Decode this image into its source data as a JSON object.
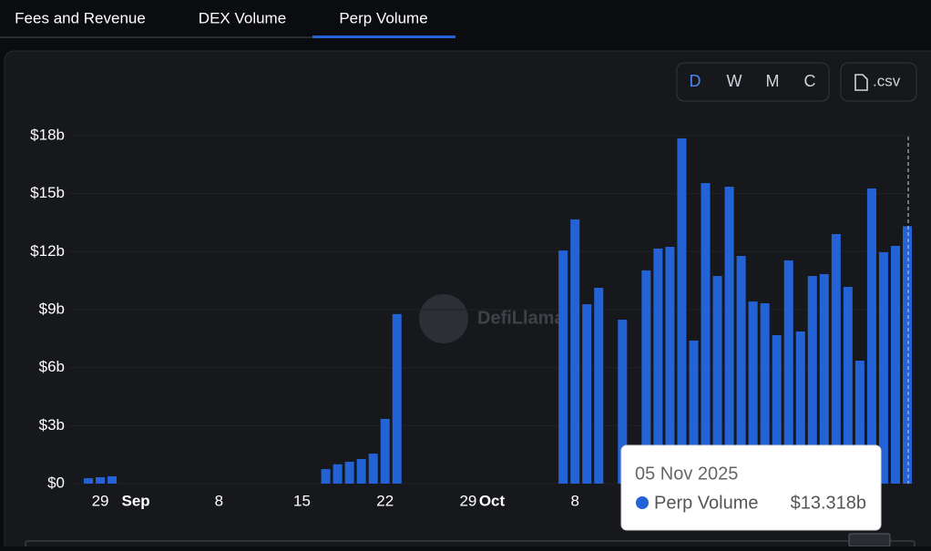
{
  "tabs": [
    "Fees and Revenue",
    "DEX Volume",
    "Perp Volume"
  ],
  "controls": {
    "periods": [
      "D",
      "W",
      "M",
      "C"
    ],
    "download": ".csv"
  },
  "watermark": "DefiLlama",
  "chart_data": {
    "type": "bar",
    "categories": [
      null,
      "29",
      null,
      null,
      "Sep",
      null,
      null,
      null,
      null,
      null,
      null,
      "8",
      null,
      null,
      null,
      null,
      null,
      null,
      "15",
      null,
      null,
      null,
      null,
      null,
      null,
      "22",
      null,
      null,
      null,
      null,
      null,
      null,
      "29",
      null,
      "Oct",
      null,
      null,
      null,
      null,
      null,
      null,
      "8",
      null,
      null,
      null,
      null,
      null,
      null,
      null,
      null,
      null,
      null,
      null,
      null,
      null,
      null,
      null,
      null,
      null,
      null,
      null,
      null,
      null,
      null,
      null,
      null,
      null,
      null,
      null,
      null
    ],
    "series": [
      {
        "name": "Perp Volume",
        "color": "#2463d6",
        "values": [
          0.28,
          0.33,
          0.38,
          0,
          0,
          0,
          0,
          0,
          0,
          0,
          0,
          0,
          0,
          0,
          0,
          0,
          0,
          0,
          0,
          0,
          0.75,
          1,
          1.13,
          1.27,
          1.55,
          3.35,
          8.77,
          0,
          0,
          0,
          0,
          0,
          0,
          0,
          0,
          0,
          0,
          0,
          0,
          0,
          12.06,
          13.67,
          9.28,
          10.13,
          0,
          8.48,
          0,
          11.03,
          12.16,
          12.25,
          17.86,
          7.4,
          15.55,
          10.74,
          15.36,
          11.78,
          9.42,
          9.33,
          7.68,
          11.55,
          7.87,
          10.74,
          10.84,
          12.91,
          10.18,
          6.36,
          15.27,
          11.97,
          12.3,
          13.318
        ]
      }
    ],
    "ylim": [
      0,
      18
    ],
    "yticks": [
      {
        "value": 0,
        "label": "$0"
      },
      {
        "value": 3,
        "label": "$3b"
      },
      {
        "value": 6,
        "label": "$6b"
      },
      {
        "value": 9,
        "label": "$9b"
      },
      {
        "value": 12,
        "label": "$12b"
      },
      {
        "value": 15,
        "label": "$15b"
      },
      {
        "value": 18,
        "label": "$18b"
      }
    ],
    "tooltip": {
      "title": "05 Nov 2025",
      "value": {
        "value": 13.318,
        "label": "$13.318b"
      }
    }
  }
}
